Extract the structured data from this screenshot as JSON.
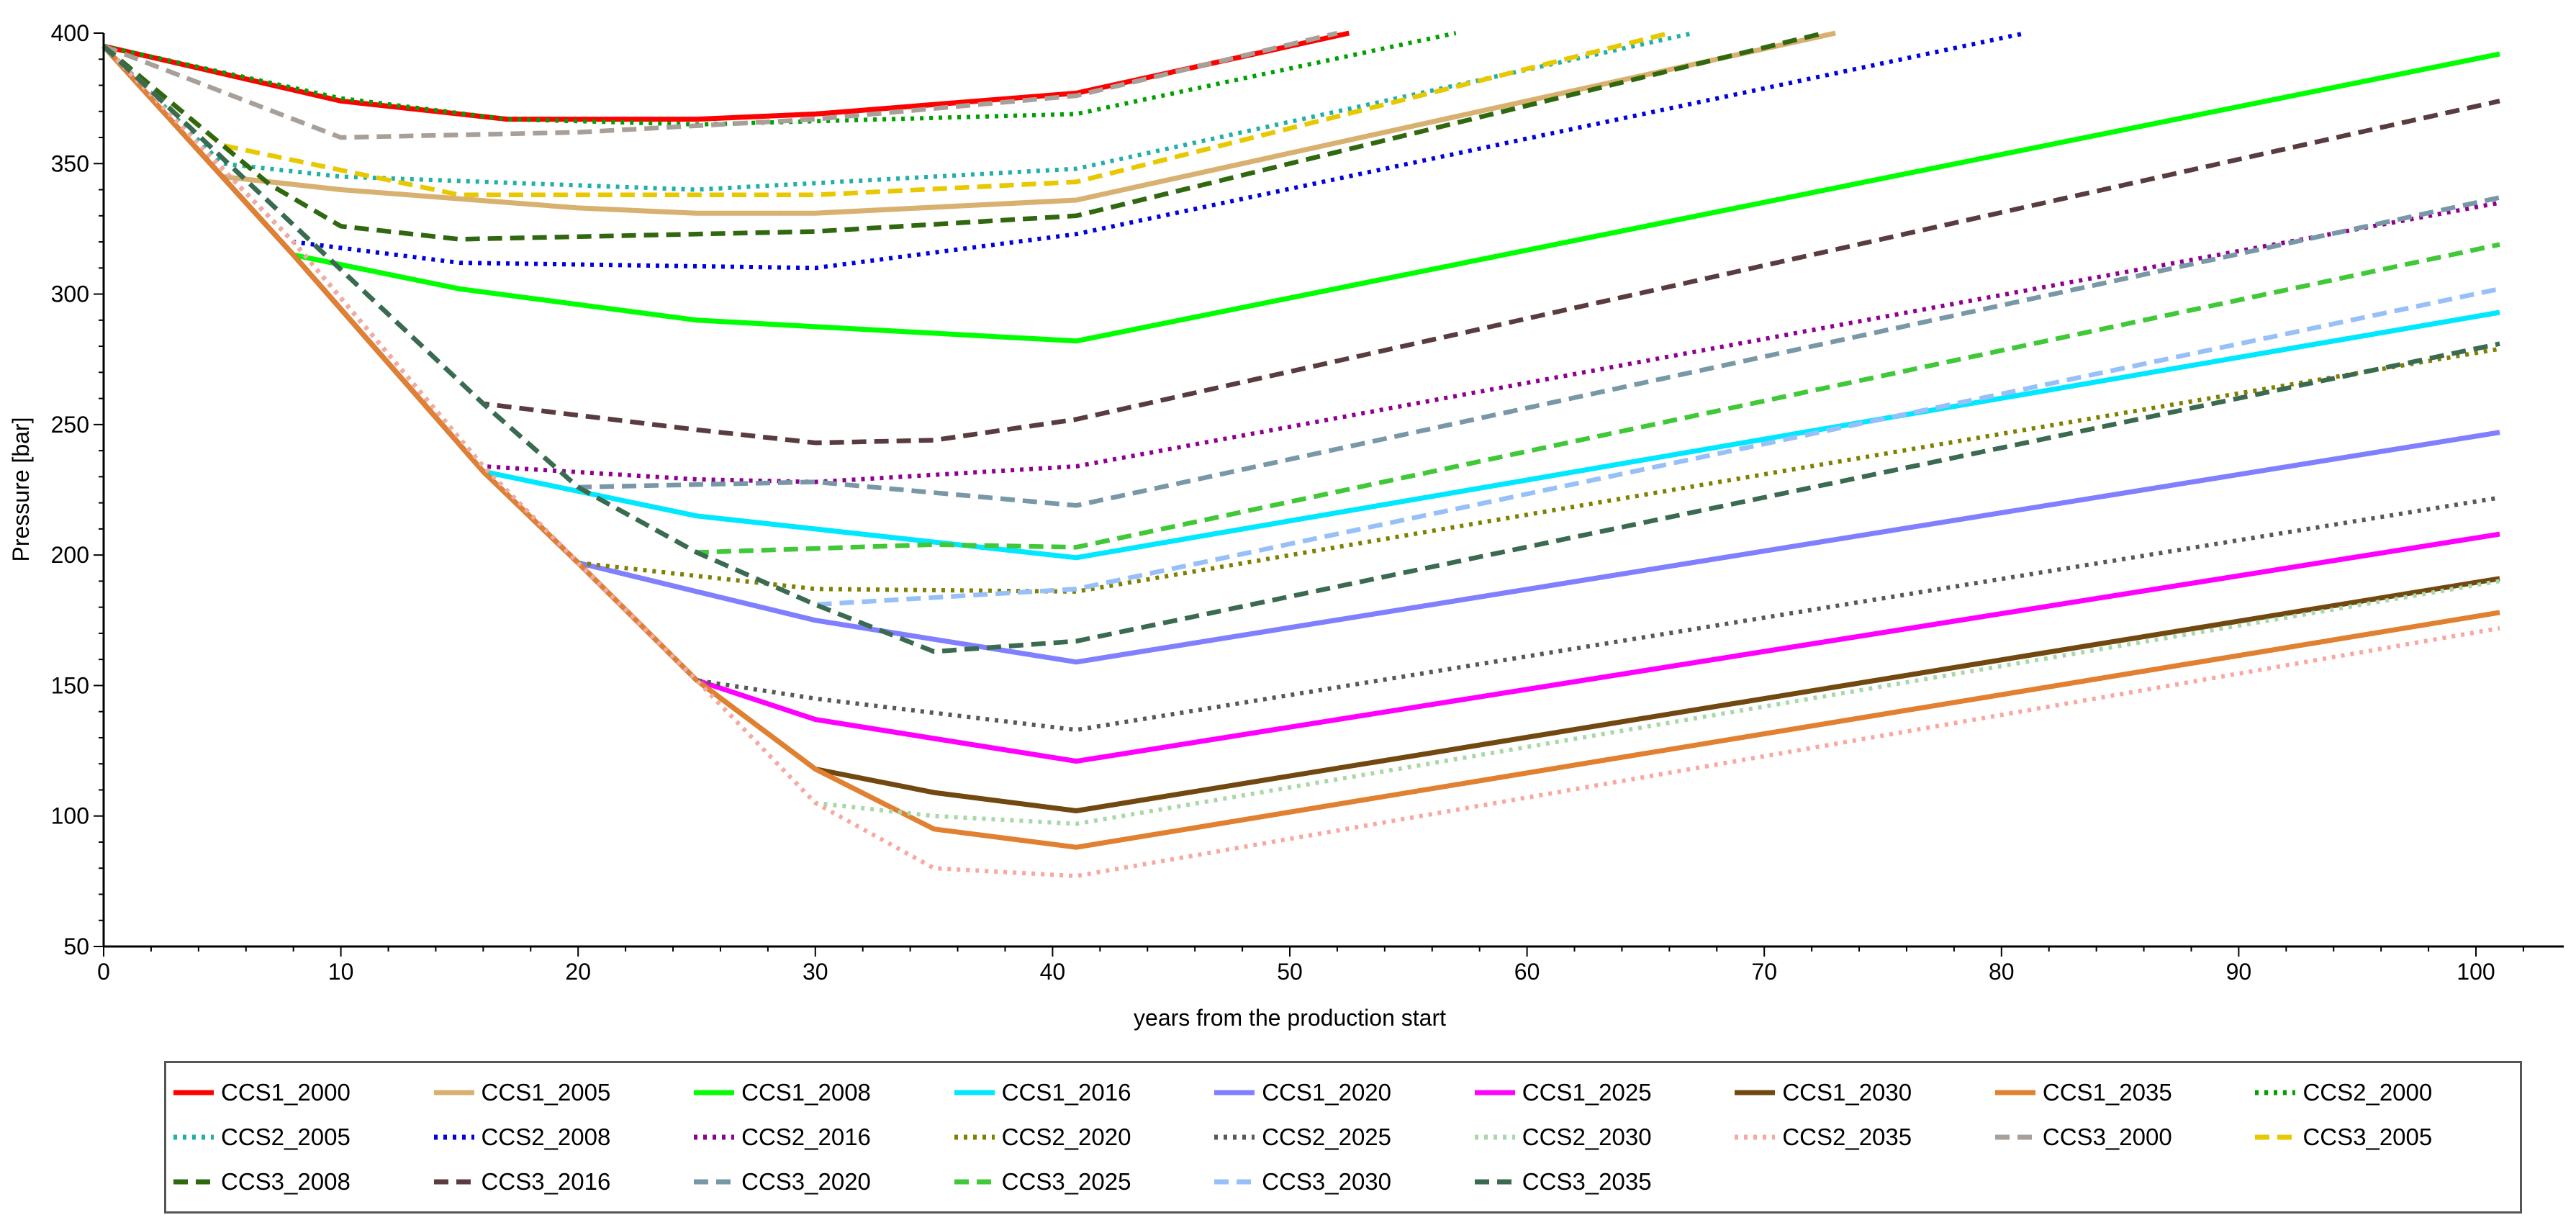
{
  "chart_data": {
    "type": "line",
    "title": "",
    "xlabel": "years from the production start",
    "ylabel": "Pressure [bar]",
    "xlim": [
      0,
      102
    ],
    "ylim": [
      50,
      400
    ],
    "xticks": [
      0,
      10,
      20,
      30,
      40,
      50,
      60,
      70,
      80,
      90,
      100
    ],
    "yticks": [
      50,
      100,
      150,
      200,
      250,
      300,
      350,
      400
    ],
    "grid": false,
    "legend_position": "bottom",
    "series": [
      {
        "name": "CCS1_2000",
        "color": "#ff0000",
        "style": "solid",
        "x": [
          0,
          10,
          17,
          25,
          30,
          41,
          52.5
        ],
        "y": [
          395,
          374,
          367,
          367,
          369,
          377,
          400
        ]
      },
      {
        "name": "CCS1_2005",
        "color": "#d8b070",
        "style": "solid",
        "x": [
          0,
          5,
          10,
          20,
          25,
          30,
          41,
          73
        ],
        "y": [
          395,
          345,
          340,
          333,
          331,
          331,
          336,
          400
        ]
      },
      {
        "name": "CCS1_2008",
        "color": "#00ff00",
        "style": "solid",
        "x": [
          0,
          5,
          8,
          15,
          25,
          41,
          101
        ],
        "y": [
          395,
          345,
          315,
          302,
          290,
          282,
          392
        ]
      },
      {
        "name": "CCS1_2016",
        "color": "#00e8ff",
        "style": "solid",
        "x": [
          0,
          5,
          8,
          16,
          25,
          41,
          101
        ],
        "y": [
          395,
          345,
          315,
          232,
          215,
          199,
          293
        ]
      },
      {
        "name": "CCS1_2020",
        "color": "#8080ff",
        "style": "solid",
        "x": [
          0,
          5,
          8,
          16,
          20,
          30,
          41,
          101
        ],
        "y": [
          395,
          345,
          315,
          232,
          197,
          175,
          159,
          247
        ]
      },
      {
        "name": "CCS1_2025",
        "color": "#ff00ff",
        "style": "solid",
        "x": [
          0,
          5,
          8,
          16,
          20,
          25,
          30,
          41,
          101
        ],
        "y": [
          395,
          345,
          315,
          232,
          197,
          152,
          137,
          121,
          208
        ]
      },
      {
        "name": "CCS1_2030",
        "color": "#704810",
        "style": "solid",
        "x": [
          0,
          5,
          8,
          16,
          20,
          25,
          30,
          35,
          41,
          101
        ],
        "y": [
          395,
          345,
          315,
          232,
          197,
          152,
          118,
          109,
          102,
          191
        ]
      },
      {
        "name": "CCS1_2035",
        "color": "#e08030",
        "style": "solid",
        "x": [
          0,
          5,
          8,
          16,
          20,
          25,
          30,
          35,
          41,
          101
        ],
        "y": [
          395,
          345,
          315,
          232,
          197,
          152,
          118,
          95,
          88,
          178
        ]
      },
      {
        "name": "CCS2_2000",
        "color": "#00a000",
        "style": "dotted",
        "x": [
          0,
          10,
          17,
          25,
          41,
          57
        ],
        "y": [
          395,
          375,
          367,
          365,
          369,
          400
        ]
      },
      {
        "name": "CCS2_2005",
        "color": "#20b0a8",
        "style": "dotted",
        "x": [
          0,
          5,
          10,
          25,
          41,
          67
        ],
        "y": [
          395,
          350,
          345,
          340,
          348,
          400
        ]
      },
      {
        "name": "CCS2_2008",
        "color": "#0000e0",
        "style": "dotted",
        "x": [
          0,
          8,
          15,
          30,
          41,
          81
        ],
        "y": [
          395,
          320,
          312,
          310,
          323,
          400
        ]
      },
      {
        "name": "CCS2_2016",
        "color": "#900090",
        "style": "dotted",
        "x": [
          0,
          8,
          16,
          25,
          30,
          41,
          101
        ],
        "y": [
          395,
          320,
          234,
          229,
          228,
          234,
          335
        ]
      },
      {
        "name": "CCS2_2020",
        "color": "#808000",
        "style": "dotted",
        "x": [
          0,
          8,
          16,
          20,
          30,
          41,
          101
        ],
        "y": [
          395,
          320,
          234,
          197,
          187,
          186,
          279
        ]
      },
      {
        "name": "CCS2_2025",
        "color": "#585858",
        "style": "dotted",
        "x": [
          0,
          8,
          16,
          20,
          25,
          30,
          41,
          101
        ],
        "y": [
          395,
          320,
          234,
          197,
          152,
          145,
          133,
          222
        ]
      },
      {
        "name": "CCS2_2030",
        "color": "#a8d8a8",
        "style": "dotted",
        "x": [
          0,
          8,
          16,
          20,
          25,
          30,
          35,
          41,
          101
        ],
        "y": [
          395,
          320,
          234,
          197,
          152,
          105,
          100,
          97,
          190
        ]
      },
      {
        "name": "CCS2_2035",
        "color": "#f8a8a0",
        "style": "dotted",
        "x": [
          0,
          8,
          16,
          20,
          25,
          30,
          35,
          41,
          101
        ],
        "y": [
          395,
          320,
          234,
          197,
          152,
          105,
          80,
          77,
          172
        ]
      },
      {
        "name": "CCS3_2000",
        "color": "#a8a098",
        "style": "dashed",
        "x": [
          0,
          10,
          20,
          30,
          41,
          52
        ],
        "y": [
          395,
          360,
          362,
          367,
          376,
          400
        ]
      },
      {
        "name": "CCS3_2005",
        "color": "#e8c800",
        "style": "dashed",
        "x": [
          0,
          5,
          15,
          30,
          41,
          66
        ],
        "y": [
          395,
          357,
          338,
          338,
          343,
          400
        ]
      },
      {
        "name": "CCS3_2008",
        "color": "#306810",
        "style": "dashed",
        "x": [
          0,
          7,
          10,
          15,
          30,
          41,
          72.5
        ],
        "y": [
          395,
          342,
          326,
          321,
          324,
          330,
          400
        ]
      },
      {
        "name": "CCS3_2016",
        "color": "#583c40",
        "style": "dashed",
        "x": [
          0,
          16,
          25,
          30,
          35,
          41,
          101
        ],
        "y": [
          395,
          258,
          248,
          243,
          244,
          252,
          374
        ]
      },
      {
        "name": "CCS3_2020",
        "color": "#7898a8",
        "style": "dashed",
        "x": [
          0,
          16,
          20,
          30,
          41,
          101
        ],
        "y": [
          395,
          258,
          226,
          228,
          219,
          337
        ]
      },
      {
        "name": "CCS3_2025",
        "color": "#40c838",
        "style": "dashed",
        "x": [
          0,
          16,
          20,
          25,
          35,
          41,
          101
        ],
        "y": [
          395,
          258,
          226,
          201,
          204,
          203,
          319
        ]
      },
      {
        "name": "CCS3_2030",
        "color": "#98c0f8",
        "style": "dashed",
        "x": [
          0,
          16,
          20,
          25,
          30,
          41,
          101
        ],
        "y": [
          395,
          258,
          226,
          201,
          181,
          187,
          302
        ]
      },
      {
        "name": "CCS3_2035",
        "color": "#3a6a50",
        "style": "dashed",
        "x": [
          0,
          16,
          20,
          25,
          30,
          35,
          41,
          101
        ],
        "y": [
          395,
          258,
          226,
          201,
          181,
          163,
          167,
          281
        ]
      }
    ]
  }
}
